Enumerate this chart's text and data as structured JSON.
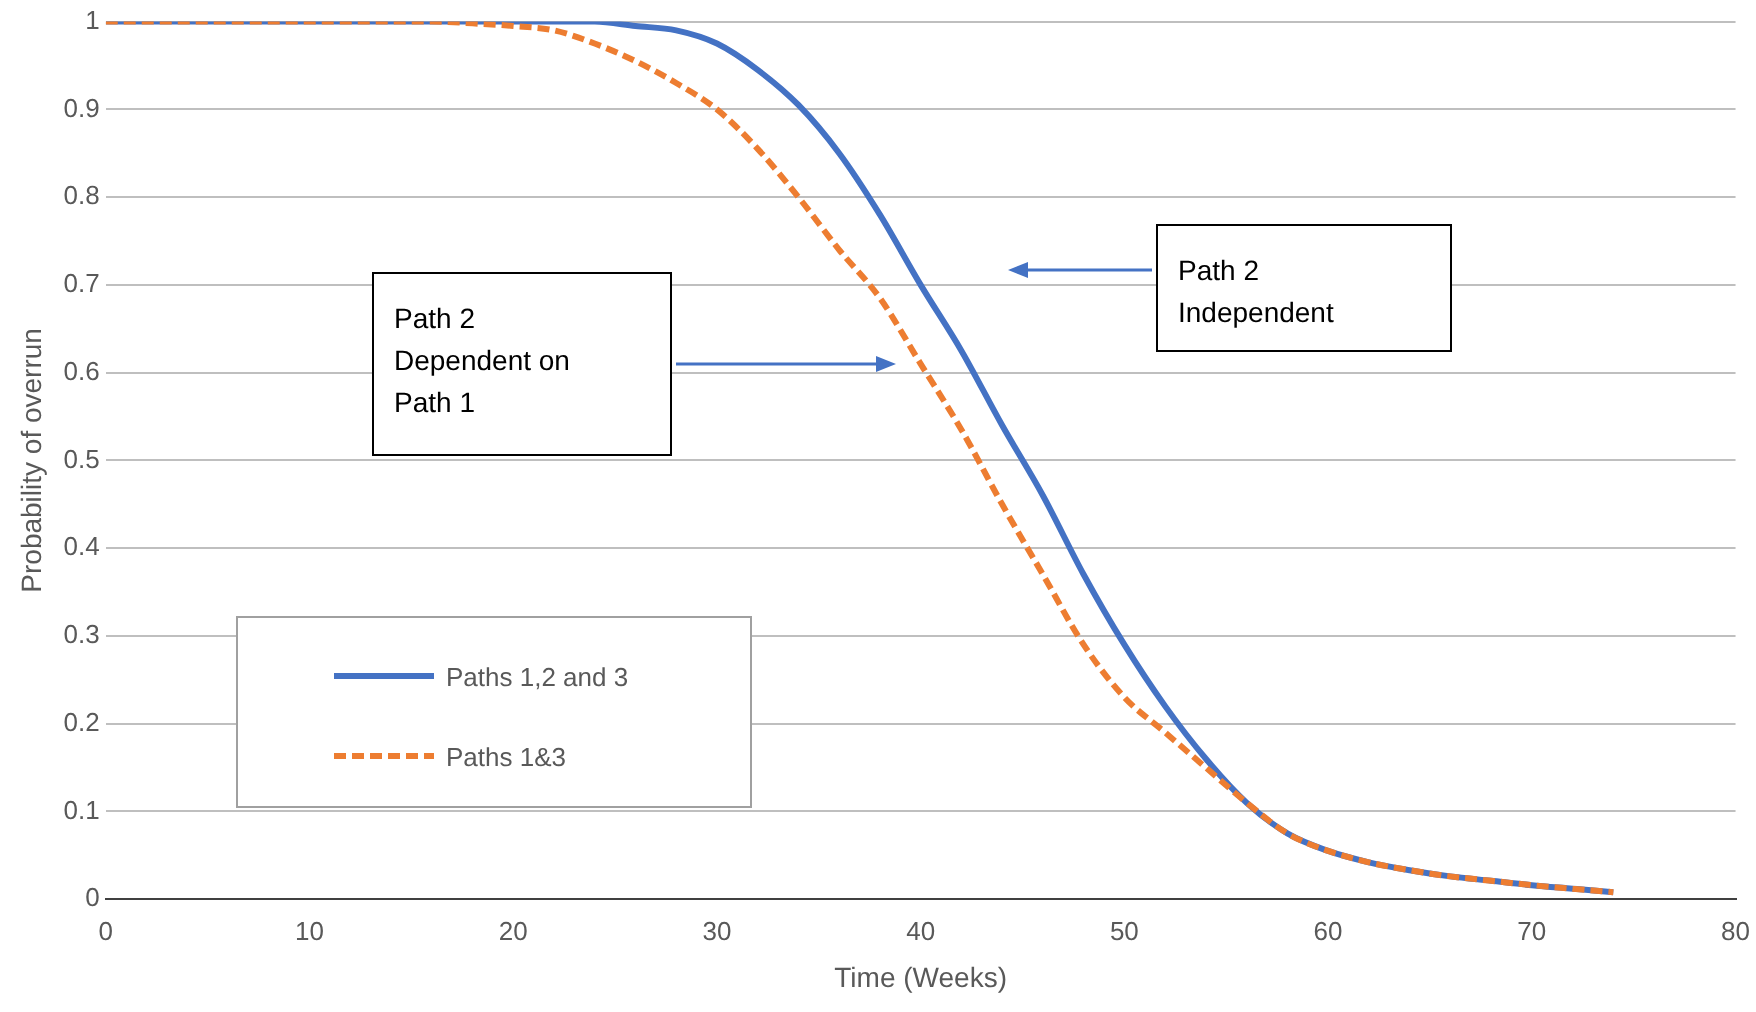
{
  "chart_data": {
    "type": "line",
    "xlabel": "Time (Weeks)",
    "ylabel": "Probability of overrun",
    "xlim": [
      0,
      80
    ],
    "xticks": [
      0,
      10,
      20,
      30,
      40,
      50,
      60,
      70,
      80
    ],
    "ylim": [
      0,
      1
    ],
    "yticks": [
      0,
      0.1,
      0.2,
      0.3,
      0.4,
      0.5,
      0.6,
      0.7,
      0.8,
      0.9,
      1
    ],
    "grid": "y",
    "legend": "bottom left",
    "marker": "none",
    "series": [
      {
        "name": "Paths 1,2 and 3",
        "color": "#4472c4",
        "line_style": "solid",
        "x": [
          0,
          10,
          20,
          24,
          26,
          28,
          30,
          32,
          34,
          36,
          38,
          40,
          42,
          44,
          46,
          48,
          50,
          52,
          54,
          56,
          58,
          60,
          62,
          64,
          66,
          68,
          70,
          72,
          74
        ],
        "values": [
          1,
          1,
          1,
          1,
          0.995,
          0.99,
          0.975,
          0.945,
          0.905,
          0.85,
          0.78,
          0.7,
          0.625,
          0.54,
          0.46,
          0.37,
          0.29,
          0.22,
          0.16,
          0.11,
          0.075,
          0.055,
          0.042,
          0.033,
          0.026,
          0.021,
          0.016,
          0.012,
          0.008
        ]
      },
      {
        "name": "Paths 1&3",
        "color": "#ed7d31",
        "line_style": "dashed",
        "x": [
          0,
          10,
          16,
          18,
          20,
          22,
          24,
          26,
          28,
          30,
          32,
          34,
          36,
          38,
          40,
          42,
          44,
          46,
          48,
          50,
          52,
          54,
          56,
          58,
          60,
          62,
          64,
          66,
          68,
          70,
          72,
          74
        ],
        "values": [
          1,
          1,
          1,
          0.998,
          0.995,
          0.99,
          0.975,
          0.955,
          0.93,
          0.9,
          0.855,
          0.8,
          0.74,
          0.685,
          0.61,
          0.535,
          0.45,
          0.37,
          0.29,
          0.23,
          0.19,
          0.15,
          0.11,
          0.075,
          0.055,
          0.042,
          0.033,
          0.026,
          0.021,
          0.016,
          0.012,
          0.008
        ]
      }
    ],
    "annotations": [
      "Path 2 Dependent on Path 1",
      "Path 2 Independent"
    ]
  }
}
